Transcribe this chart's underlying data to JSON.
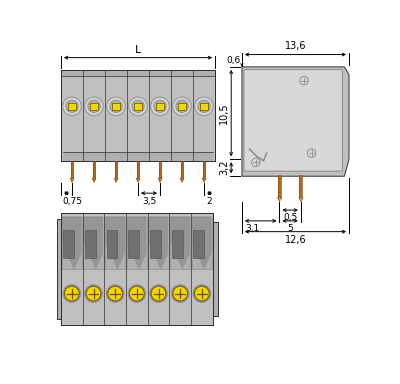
{
  "bg_color": "#ffffff",
  "gray_body": "#c0c0c0",
  "gray_dark": "#909090",
  "gray_light": "#d8d8d8",
  "gray_mid": "#b0b0b0",
  "yellow_color": "#f0d800",
  "brown_pin": "#b86820",
  "outline": "#303030",
  "black": "#000000",
  "lw": 0.7,
  "fs": 7.0,
  "num_poles": 7
}
